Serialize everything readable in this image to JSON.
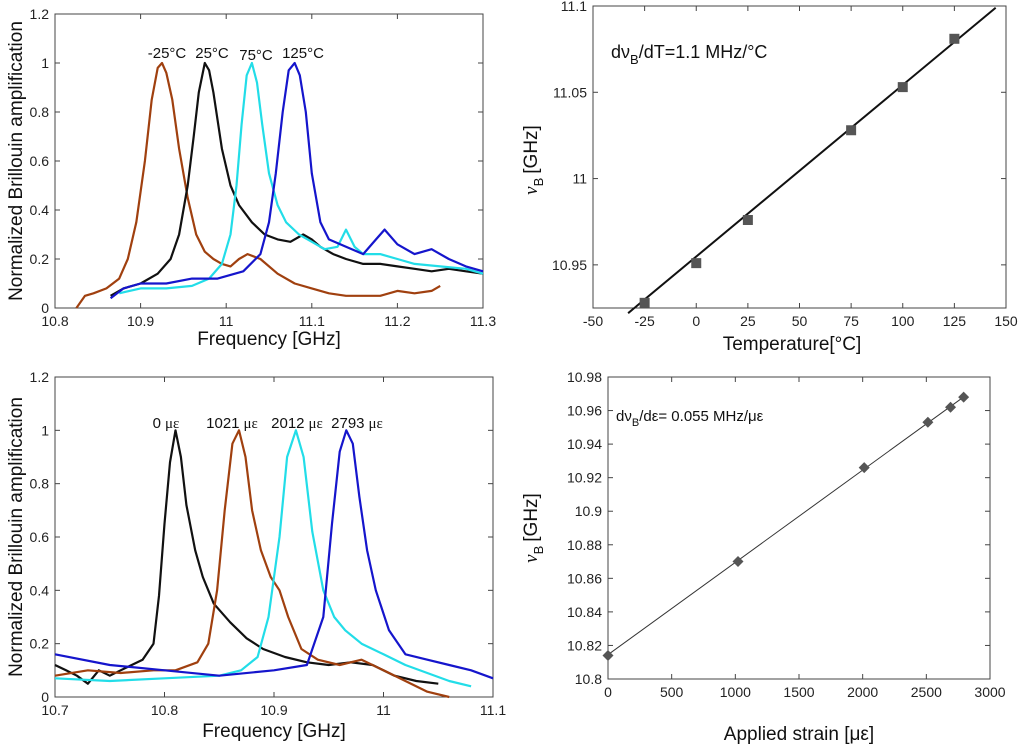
{
  "chart_data": [
    {
      "id": "p1",
      "type": "line",
      "xlabel": "Frequency [GHz]",
      "ylabel": "Normalized Brillouin amplification",
      "xlim": [
        10.8,
        11.3
      ],
      "ylim": [
        0,
        1.2
      ],
      "xticks": [
        "10.8",
        "10.9",
        "11",
        "11.1",
        "11.2",
        "11.3"
      ],
      "xtick_values": [
        10.8,
        10.9,
        11.0,
        11.1,
        11.2,
        11.3
      ],
      "yticks": [
        "0",
        "0.2",
        "0.4",
        "0.6",
        "0.8",
        "1",
        "1.2"
      ],
      "ytick_values": [
        0,
        0.2,
        0.4,
        0.6,
        0.8,
        1.0,
        1.2
      ],
      "grid": false,
      "series": [
        {
          "name": "-25°C",
          "label": "-25°C",
          "color": "#A0400F",
          "x": [
            10.825,
            10.835,
            10.845,
            10.86,
            10.875,
            10.885,
            10.895,
            10.905,
            10.913,
            10.92,
            10.925,
            10.93,
            10.937,
            10.945,
            10.955,
            10.965,
            10.975,
            10.985,
            10.995,
            11.005,
            11.015,
            11.025,
            11.04,
            11.06,
            11.08,
            11.1,
            11.12,
            11.14,
            11.16,
            11.18,
            11.2,
            11.22,
            11.24,
            11.25
          ],
          "y": [
            0.0,
            0.05,
            0.06,
            0.08,
            0.12,
            0.2,
            0.35,
            0.6,
            0.85,
            0.98,
            1.0,
            0.96,
            0.85,
            0.65,
            0.45,
            0.3,
            0.23,
            0.2,
            0.18,
            0.17,
            0.2,
            0.22,
            0.2,
            0.14,
            0.1,
            0.08,
            0.06,
            0.05,
            0.05,
            0.05,
            0.07,
            0.06,
            0.07,
            0.09
          ]
        },
        {
          "name": "25°C",
          "label": "25°C",
          "color": "#111111",
          "x": [
            10.865,
            10.88,
            10.9,
            10.92,
            10.935,
            10.945,
            10.955,
            10.962,
            10.968,
            10.975,
            10.98,
            10.985,
            10.995,
            11.005,
            11.015,
            11.03,
            11.045,
            11.06,
            11.075,
            11.09,
            11.1,
            11.11,
            11.125,
            11.14,
            11.16,
            11.18,
            11.2,
            11.22,
            11.24,
            11.26,
            11.28,
            11.3
          ],
          "y": [
            0.05,
            0.08,
            0.1,
            0.14,
            0.2,
            0.3,
            0.5,
            0.7,
            0.88,
            1.0,
            0.97,
            0.88,
            0.65,
            0.5,
            0.42,
            0.35,
            0.3,
            0.28,
            0.27,
            0.3,
            0.28,
            0.25,
            0.22,
            0.2,
            0.18,
            0.18,
            0.17,
            0.16,
            0.15,
            0.16,
            0.15,
            0.14
          ]
        },
        {
          "name": "75°C",
          "label": "75°C",
          "color": "#22DDE8",
          "x": [
            10.875,
            10.9,
            10.93,
            10.96,
            10.98,
            10.995,
            11.005,
            11.012,
            11.018,
            11.024,
            11.03,
            11.036,
            11.042,
            11.05,
            11.06,
            11.07,
            11.085,
            11.1,
            11.115,
            11.13,
            11.14,
            11.15,
            11.16,
            11.18,
            11.2,
            11.22,
            11.25,
            11.28,
            11.3
          ],
          "y": [
            0.06,
            0.08,
            0.08,
            0.09,
            0.12,
            0.18,
            0.3,
            0.5,
            0.75,
            0.95,
            1.0,
            0.92,
            0.75,
            0.55,
            0.42,
            0.35,
            0.3,
            0.27,
            0.24,
            0.25,
            0.32,
            0.25,
            0.22,
            0.22,
            0.2,
            0.18,
            0.17,
            0.16,
            0.14
          ]
        },
        {
          "name": "125°C",
          "label": "125°C",
          "color": "#1515CC",
          "x": [
            10.865,
            10.88,
            10.9,
            10.93,
            10.96,
            10.99,
            11.02,
            11.04,
            11.05,
            11.058,
            11.066,
            11.073,
            11.08,
            11.086,
            11.093,
            11.1,
            11.11,
            11.12,
            11.14,
            11.16,
            11.175,
            11.185,
            11.2,
            11.22,
            11.24,
            11.26,
            11.28,
            11.3
          ],
          "y": [
            0.04,
            0.08,
            0.1,
            0.1,
            0.12,
            0.12,
            0.15,
            0.22,
            0.35,
            0.55,
            0.8,
            0.97,
            1.0,
            0.95,
            0.8,
            0.55,
            0.35,
            0.28,
            0.25,
            0.22,
            0.28,
            0.32,
            0.26,
            0.22,
            0.24,
            0.2,
            0.17,
            0.15
          ]
        }
      ]
    },
    {
      "id": "p2",
      "type": "scatter",
      "xlabel": "Temperature[°C]",
      "ylabel": "ν",
      "ylabel_sub": "B",
      "ylabel_unit": "[GHz]",
      "xlim": [
        -50,
        150
      ],
      "ylim": [
        10.925,
        11.1
      ],
      "xticks": [
        "-50",
        "-25",
        "0",
        "25",
        "50",
        "75",
        "100",
        "125",
        "150"
      ],
      "xtick_values": [
        -50,
        -25,
        0,
        25,
        50,
        75,
        100,
        125,
        150
      ],
      "yticks": [
        "10.95",
        "11",
        "11.05",
        "11.1"
      ],
      "ytick_values": [
        10.95,
        11.0,
        11.05,
        11.1
      ],
      "grid": false,
      "marker": "square",
      "marker_color": "#555555",
      "x": [
        -25,
        0,
        25,
        75,
        100,
        125
      ],
      "y": [
        10.928,
        10.951,
        10.976,
        11.028,
        11.053,
        11.081
      ],
      "fit_line": {
        "x": [
          -33,
          145
        ],
        "y": [
          10.922,
          11.099
        ],
        "color": "#111111"
      },
      "annotation": {
        "prefix": "dν",
        "sub": "B",
        "suffix": "/dT=1.1 MHz/°C"
      }
    },
    {
      "id": "p3",
      "type": "line",
      "xlabel": "Frequency [GHz]",
      "ylabel": "Normalized Brillouin amplification",
      "xlim": [
        10.7,
        11.1
      ],
      "ylim": [
        0,
        1.2
      ],
      "xticks": [
        "10.7",
        "10.8",
        "10.9",
        "11",
        "11.1"
      ],
      "xtick_values": [
        10.7,
        10.8,
        10.9,
        11.0,
        11.1
      ],
      "yticks": [
        "0",
        "0.2",
        "0.4",
        "0.6",
        "0.8",
        "1",
        "1.2"
      ],
      "ytick_values": [
        0,
        0.2,
        0.4,
        0.6,
        0.8,
        1.0,
        1.2
      ],
      "grid": false,
      "series": [
        {
          "name": "0 με",
          "value": "0",
          "unit": "με",
          "color": "#111111",
          "x": [
            10.7,
            10.71,
            10.72,
            10.73,
            10.74,
            10.75,
            10.76,
            10.77,
            10.78,
            10.79,
            10.795,
            10.8,
            10.805,
            10.81,
            10.815,
            10.82,
            10.828,
            10.835,
            10.845,
            10.86,
            10.875,
            10.89,
            10.91,
            10.93,
            10.95,
            10.97,
            10.99,
            11.01,
            11.03,
            11.05
          ],
          "y": [
            0.12,
            0.1,
            0.08,
            0.05,
            0.1,
            0.08,
            0.1,
            0.12,
            0.14,
            0.2,
            0.38,
            0.65,
            0.88,
            1.0,
            0.9,
            0.72,
            0.55,
            0.45,
            0.35,
            0.28,
            0.22,
            0.18,
            0.15,
            0.13,
            0.12,
            0.13,
            0.12,
            0.08,
            0.06,
            0.05
          ]
        },
        {
          "name": "1021 με",
          "value": "1021",
          "unit": "με",
          "color": "#A0400F",
          "x": [
            10.7,
            10.73,
            10.76,
            10.79,
            10.81,
            10.83,
            10.84,
            10.848,
            10.855,
            10.862,
            10.868,
            10.874,
            10.88,
            10.888,
            10.897,
            10.905,
            10.913,
            10.925,
            10.94,
            10.96,
            10.98,
            11.0,
            11.02,
            11.04,
            11.06
          ],
          "y": [
            0.08,
            0.1,
            0.09,
            0.1,
            0.1,
            0.13,
            0.2,
            0.4,
            0.7,
            0.95,
            1.0,
            0.9,
            0.7,
            0.55,
            0.45,
            0.4,
            0.3,
            0.18,
            0.14,
            0.12,
            0.14,
            0.1,
            0.06,
            0.02,
            0.0
          ]
        },
        {
          "name": "2012 με",
          "value": "2012",
          "unit": "με",
          "color": "#22DDE8",
          "x": [
            10.7,
            10.75,
            10.8,
            10.85,
            10.87,
            10.885,
            10.895,
            10.905,
            10.912,
            10.92,
            10.927,
            10.935,
            10.945,
            10.955,
            10.965,
            10.98,
            11.0,
            11.02,
            11.04,
            11.06,
            11.08
          ],
          "y": [
            0.07,
            0.06,
            0.07,
            0.08,
            0.1,
            0.15,
            0.3,
            0.6,
            0.9,
            1.0,
            0.9,
            0.62,
            0.4,
            0.3,
            0.25,
            0.2,
            0.16,
            0.12,
            0.09,
            0.06,
            0.04
          ]
        },
        {
          "name": "2793 με",
          "value": "2793",
          "unit": "με",
          "color": "#1515CC",
          "x": [
            10.7,
            10.75,
            10.8,
            10.85,
            10.9,
            10.93,
            10.945,
            10.953,
            10.96,
            10.966,
            10.972,
            10.978,
            10.985,
            10.993,
            11.005,
            11.02,
            11.04,
            11.06,
            11.08,
            11.1
          ],
          "y": [
            0.16,
            0.12,
            0.1,
            0.08,
            0.1,
            0.12,
            0.3,
            0.65,
            0.92,
            1.0,
            0.95,
            0.75,
            0.55,
            0.4,
            0.25,
            0.16,
            0.14,
            0.12,
            0.1,
            0.07
          ]
        }
      ]
    },
    {
      "id": "p4",
      "type": "scatter",
      "xlabel": "Applied strain [με]",
      "ylabel": "ν",
      "ylabel_sub": "B",
      "ylabel_unit": "[GHz]",
      "xlim": [
        0,
        3000
      ],
      "ylim": [
        10.8,
        10.98
      ],
      "xticks": [
        "0",
        "500",
        "1000",
        "1500",
        "2000",
        "2500",
        "3000"
      ],
      "xtick_values": [
        0,
        500,
        1000,
        1500,
        2000,
        2500,
        3000
      ],
      "yticks": [
        "10.8",
        "10.82",
        "10.84",
        "10.86",
        "10.88",
        "10.9",
        "10.92",
        "10.94",
        "10.96",
        "10.98"
      ],
      "ytick_values": [
        10.8,
        10.82,
        10.84,
        10.86,
        10.88,
        10.9,
        10.92,
        10.94,
        10.96,
        10.98
      ],
      "grid": false,
      "marker": "diamond",
      "marker_color": "#555555",
      "x": [
        0,
        1021,
        2012,
        2512,
        2690,
        2793
      ],
      "y": [
        10.814,
        10.87,
        10.926,
        10.953,
        10.962,
        10.968
      ],
      "fit_line": {
        "x": [
          0,
          2800
        ],
        "y": [
          10.8145,
          10.9685
        ],
        "color": "#333333"
      },
      "annotation": {
        "prefix": "dν",
        "sub": "B",
        "suffix": "/dε= 0.055 MHz/με"
      }
    }
  ]
}
